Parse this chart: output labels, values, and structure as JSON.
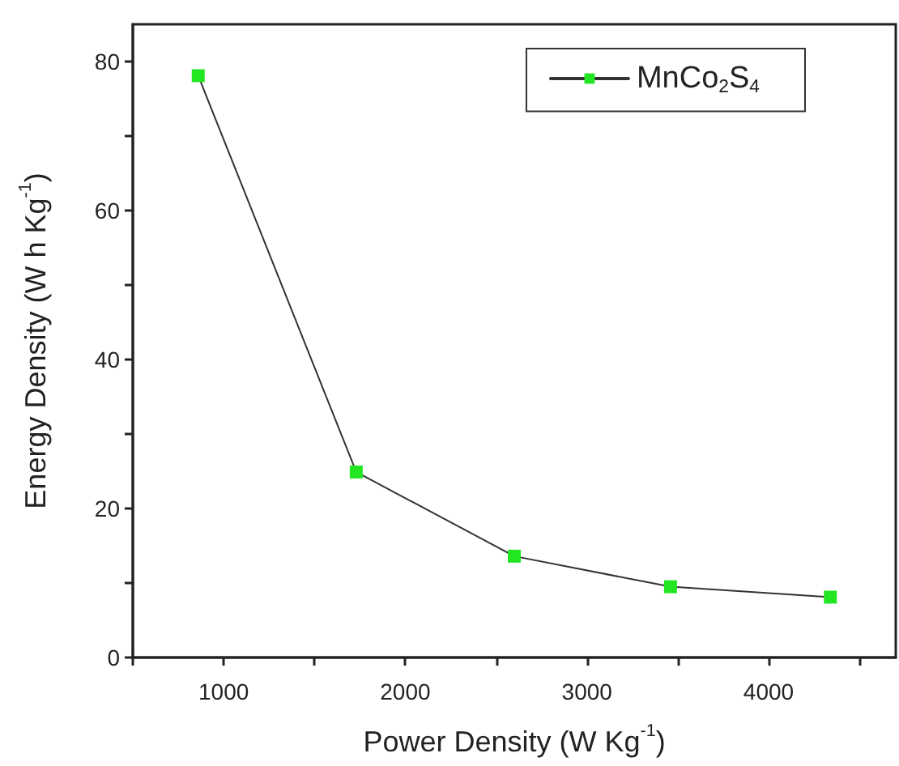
{
  "chart_data": {
    "type": "line",
    "xlabel": "Power Density (W Kg$^{-1}$)",
    "ylabel": "Energy Density (W h Kg$^{-1}$)",
    "x": [
      860,
      1730,
      2600,
      3460,
      4340
    ],
    "series": [
      {
        "name": "MnCo$_{2}$S$_{4}$",
        "color": "#22e622",
        "values": [
          78.1,
          24.9,
          13.6,
          9.5,
          8.1
        ]
      }
    ],
    "xlim": [
      500,
      4700
    ],
    "xticks": [
      {
        "value": 500,
        "label": null
      },
      1000,
      {
        "value": 1500,
        "label": null
      },
      2000,
      {
        "value": 2500,
        "label": null
      },
      3000,
      {
        "value": 3500,
        "label": null
      },
      4000,
      {
        "value": 4500,
        "label": null
      }
    ],
    "ylim": [
      0,
      85
    ],
    "yticks": [
      0,
      {
        "value": 10,
        "label": null
      },
      20,
      {
        "value": 30,
        "label": null
      },
      40,
      {
        "value": 50,
        "label": null
      },
      60,
      {
        "value": 70,
        "label": null
      },
      80
    ],
    "grid": false,
    "legend": "top right",
    "marker": "square",
    "line_style": "solid"
  }
}
